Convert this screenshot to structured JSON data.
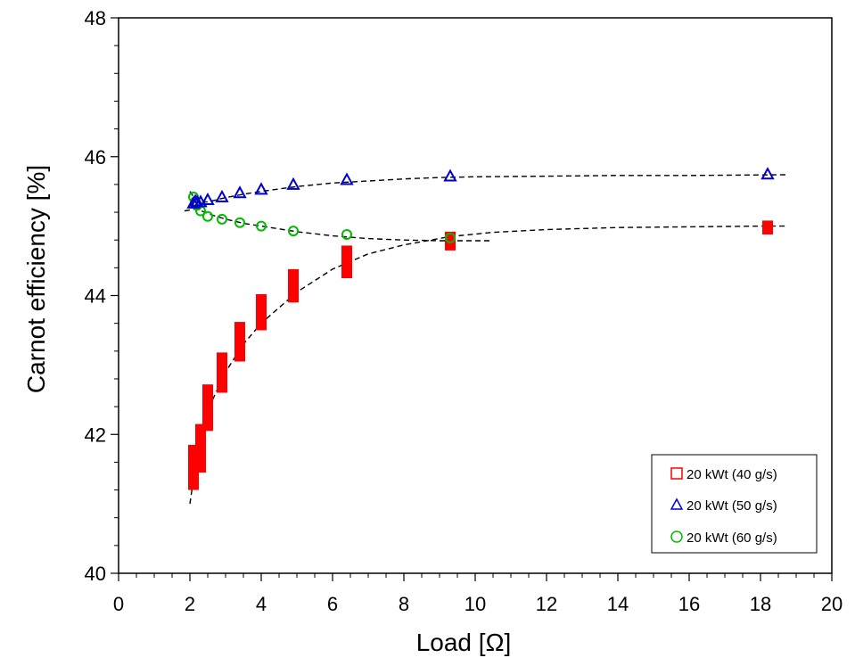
{
  "chart_data": {
    "type": "scatter",
    "title": "",
    "xlabel": "Load [Ω]",
    "ylabel": "Carnot efficiency  [%]",
    "xlim": [
      0,
      20
    ],
    "ylim": [
      40,
      48
    ],
    "x_ticks": [
      0,
      2,
      4,
      6,
      8,
      10,
      12,
      14,
      16,
      18,
      20
    ],
    "y_ticks": [
      40,
      42,
      44,
      46,
      48
    ],
    "x_minor_step": 0.5,
    "y_minor_step": 0.4,
    "grid": false,
    "legend_position": "bottom-right",
    "series": [
      {
        "name": "20 kWt (40 g/s)",
        "marker": "square",
        "color": "#ff0000",
        "x": [
          2.1,
          2.3,
          2.5,
          2.9,
          3.4,
          4.0,
          4.9,
          6.4,
          9.3,
          18.2
        ],
        "y_low": [
          41.2,
          41.45,
          42.05,
          42.6,
          43.05,
          43.5,
          43.9,
          44.25,
          44.65,
          44.88
        ],
        "y_high": [
          41.85,
          42.15,
          42.72,
          43.18,
          43.62,
          44.02,
          44.38,
          44.72,
          44.92,
          45.08
        ]
      },
      {
        "name": "20 kWt (50 g/s)",
        "marker": "triangle",
        "color": "#0000cc",
        "x": [
          2.1,
          2.15,
          2.2,
          2.3,
          2.5,
          2.9,
          3.4,
          4.0,
          4.9,
          6.4,
          9.3,
          18.2
        ],
        "y": [
          45.33,
          45.36,
          45.35,
          45.35,
          45.38,
          45.42,
          45.48,
          45.53,
          45.6,
          45.67,
          45.72,
          45.75
        ]
      },
      {
        "name": "20 kWt (60 g/s)",
        "marker": "circle",
        "color": "#00bb00",
        "x": [
          2.1,
          2.15,
          2.2,
          2.3,
          2.5,
          2.9,
          3.4,
          4.0,
          4.9,
          6.4,
          9.3
        ],
        "y": [
          45.42,
          45.35,
          45.3,
          45.22,
          45.14,
          45.1,
          45.05,
          45.0,
          44.93,
          44.88,
          44.83
        ]
      }
    ],
    "fit_curves": [
      {
        "series": "20 kWt (40 g/s)",
        "style": "dashed",
        "x": [
          2.0,
          2.2,
          2.5,
          3.0,
          3.5,
          4.0,
          5.0,
          6.0,
          7.0,
          8.0,
          9.3,
          10.5,
          12.0,
          14.0,
          16.0,
          18.0,
          18.7
        ],
        "y": [
          41.0,
          41.72,
          42.35,
          42.9,
          43.3,
          43.6,
          44.05,
          44.38,
          44.6,
          44.73,
          44.85,
          44.91,
          44.95,
          44.98,
          44.99,
          45.0,
          45.0
        ]
      },
      {
        "series": "20 kWt (50 g/s)",
        "style": "dashed",
        "x": [
          2.0,
          2.2,
          2.5,
          3.0,
          3.5,
          4.0,
          5.0,
          6.0,
          7.0,
          8.0,
          9.0,
          10.0,
          12.0,
          14.0,
          16.0,
          18.7
        ],
        "y": [
          45.5,
          45.35,
          45.35,
          45.41,
          45.46,
          45.5,
          45.57,
          45.62,
          45.65,
          45.68,
          45.7,
          45.71,
          45.72,
          45.73,
          45.73,
          45.74
        ]
      },
      {
        "series": "20 kWt (60 g/s)",
        "style": "dashed",
        "x": [
          1.85,
          2.2,
          2.5,
          3.0,
          3.5,
          4.0,
          5.0,
          6.0,
          7.0,
          8.0,
          9.0,
          10.5
        ],
        "y": [
          45.22,
          45.25,
          45.18,
          45.1,
          45.04,
          45.0,
          44.92,
          44.86,
          44.82,
          44.8,
          44.79,
          44.79
        ]
      }
    ]
  }
}
